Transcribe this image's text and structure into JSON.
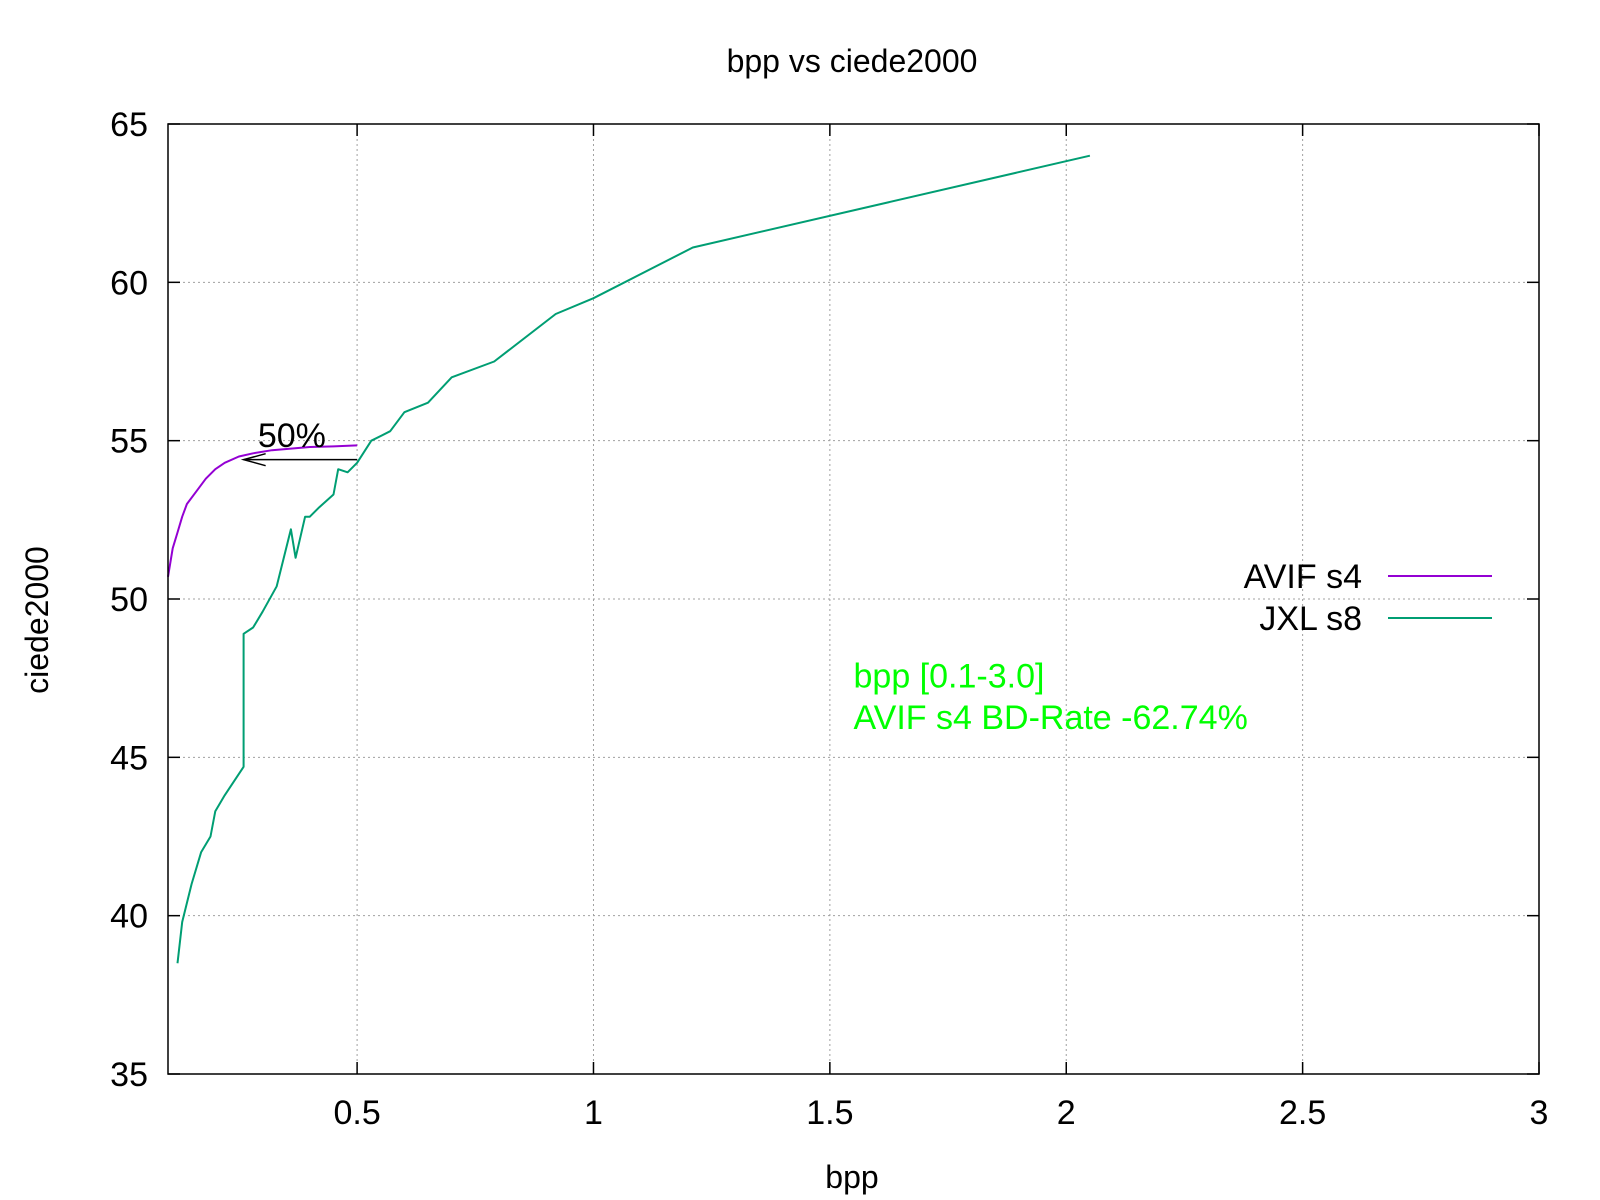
{
  "chart_data": {
    "type": "line",
    "title": "bpp vs ciede2000",
    "xlabel": "bpp",
    "ylabel": "ciede2000",
    "xlim": [
      0.1,
      3.0
    ],
    "ylim": [
      35,
      65
    ],
    "xticks": [
      0.5,
      1,
      1.5,
      2,
      2.5,
      3
    ],
    "xtick_labels": [
      "0.5",
      "1",
      "1.5",
      "2",
      "2.5",
      "3"
    ],
    "yticks": [
      35,
      40,
      45,
      50,
      55,
      60,
      65
    ],
    "ytick_labels": [
      "35",
      "40",
      "45",
      "50",
      "55",
      "60",
      "65"
    ],
    "grid": true,
    "legend_position": "right",
    "series": [
      {
        "name": "AVIF s4",
        "color": "#9400d3",
        "x": [
          0.1,
          0.11,
          0.12,
          0.13,
          0.14,
          0.16,
          0.18,
          0.2,
          0.22,
          0.25,
          0.28,
          0.32,
          0.36,
          0.4,
          0.45,
          0.5
        ],
        "y": [
          50.7,
          51.6,
          52.1,
          52.6,
          53.0,
          53.4,
          53.8,
          54.1,
          54.3,
          54.5,
          54.6,
          54.7,
          54.75,
          54.8,
          54.82,
          54.85
        ]
      },
      {
        "name": "JXL s8",
        "color": "#009e73",
        "x": [
          0.12,
          0.13,
          0.15,
          0.17,
          0.19,
          0.2,
          0.22,
          0.26,
          0.26,
          0.26,
          0.28,
          0.3,
          0.33,
          0.36,
          0.37,
          0.39,
          0.4,
          0.42,
          0.45,
          0.46,
          0.48,
          0.5,
          0.53,
          0.57,
          0.6,
          0.65,
          0.7,
          0.79,
          0.92,
          1.0,
          1.21,
          2.05
        ],
        "y": [
          38.5,
          39.8,
          41.0,
          42.0,
          42.5,
          43.3,
          43.8,
          44.7,
          46.8,
          48.9,
          49.1,
          49.6,
          50.4,
          52.2,
          51.3,
          52.6,
          52.6,
          52.9,
          53.3,
          54.1,
          54.0,
          54.3,
          55.0,
          55.3,
          55.9,
          56.2,
          57.0,
          57.5,
          59.0,
          59.5,
          61.1,
          64.0
        ]
      }
    ],
    "annotations": [
      {
        "text": "50%",
        "x": 0.29,
        "y": 54.8,
        "color": "#000000",
        "arrow_from": [
          0.5,
          54.4
        ],
        "arrow_to": [
          0.26,
          54.4
        ]
      },
      {
        "text": "bpp [0.1-3.0]",
        "x": 1.55,
        "y": 47.2,
        "color": "#00ff00"
      },
      {
        "text": "AVIF s4 BD-Rate -62.74%",
        "x": 1.55,
        "y": 45.9,
        "color": "#00ff00"
      }
    ]
  }
}
